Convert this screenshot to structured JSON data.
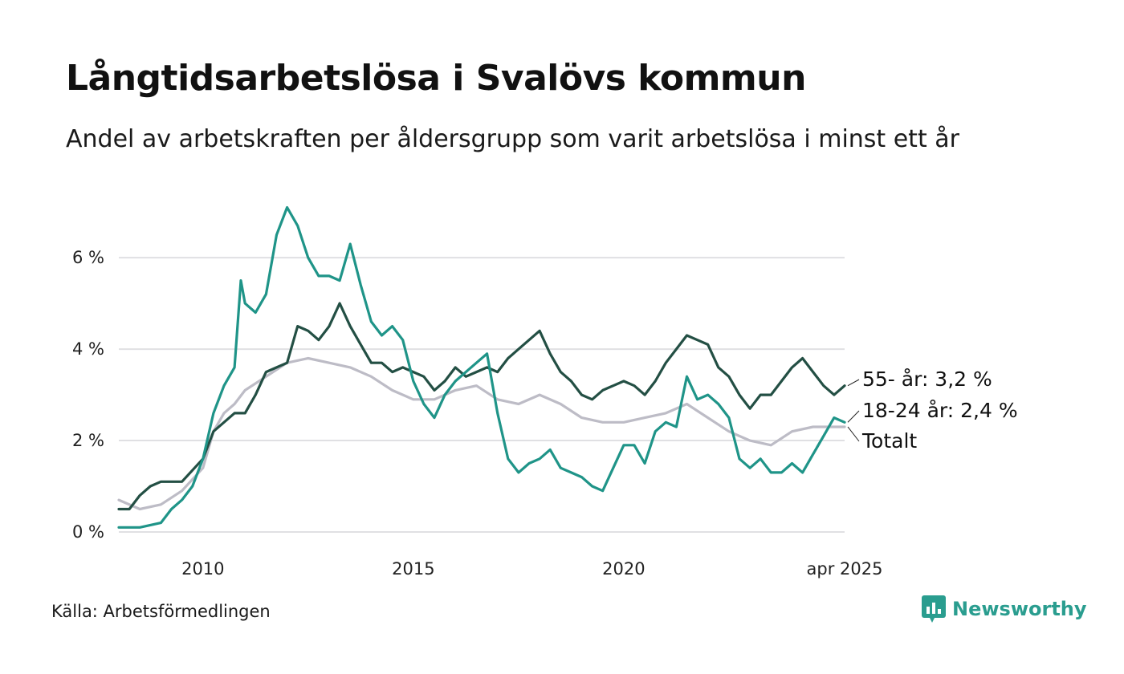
{
  "title": "Långtidsarbetslösa i Svalövs kommun",
  "subtitle": "Andel av arbetskraften per åldersgrupp som varit arbetslösa i minst ett år",
  "source": "Källa: Arbetsförmedlingen",
  "brand": {
    "name": "Newsworthy",
    "icon": "newsworthy-logo-icon",
    "color": "#2a9d8f"
  },
  "chart_data": {
    "type": "line",
    "title": "Långtidsarbetslösa i Svalövs kommun",
    "subtitle": "Andel av arbetskraften per åldersgrupp som varit arbetslösa i minst ett år",
    "xlabel": "",
    "ylabel": "",
    "xlim": [
      2008.0,
      2025.25
    ],
    "ylim": [
      0,
      7.6
    ],
    "y_ticks": [
      {
        "value": 0,
        "label": "0 %"
      },
      {
        "value": 2,
        "label": "2 %"
      },
      {
        "value": 4,
        "label": "4 %"
      },
      {
        "value": 6,
        "label": "6 %"
      }
    ],
    "x_ticks": [
      {
        "value": 2010,
        "label": "2010"
      },
      {
        "value": 2015,
        "label": "2015"
      },
      {
        "value": 2020,
        "label": "2020"
      },
      {
        "value": 2025.25,
        "label": "apr 2025"
      }
    ],
    "grid": "horizontal",
    "legend": "end-labels",
    "series": [
      {
        "name": "Totalt",
        "label": "Totalt",
        "color": "#bdbcc6",
        "points": [
          [
            2008.0,
            0.7
          ],
          [
            2008.5,
            0.5
          ],
          [
            2009.0,
            0.6
          ],
          [
            2009.5,
            0.9
          ],
          [
            2010.0,
            1.4
          ],
          [
            2010.25,
            2.2
          ],
          [
            2010.5,
            2.6
          ],
          [
            2010.75,
            2.8
          ],
          [
            2011.0,
            3.1
          ],
          [
            2011.5,
            3.4
          ],
          [
            2012.0,
            3.7
          ],
          [
            2012.5,
            3.8
          ],
          [
            2013.0,
            3.7
          ],
          [
            2013.5,
            3.6
          ],
          [
            2014.0,
            3.4
          ],
          [
            2014.5,
            3.1
          ],
          [
            2015.0,
            2.9
          ],
          [
            2015.5,
            2.9
          ],
          [
            2016.0,
            3.1
          ],
          [
            2016.5,
            3.2
          ],
          [
            2017.0,
            2.9
          ],
          [
            2017.5,
            2.8
          ],
          [
            2018.0,
            3.0
          ],
          [
            2018.5,
            2.8
          ],
          [
            2019.0,
            2.5
          ],
          [
            2019.5,
            2.4
          ],
          [
            2020.0,
            2.4
          ],
          [
            2020.5,
            2.5
          ],
          [
            2021.0,
            2.6
          ],
          [
            2021.5,
            2.8
          ],
          [
            2022.0,
            2.5
          ],
          [
            2022.5,
            2.2
          ],
          [
            2023.0,
            2.0
          ],
          [
            2023.5,
            1.9
          ],
          [
            2024.0,
            2.2
          ],
          [
            2024.5,
            2.3
          ],
          [
            2025.0,
            2.3
          ],
          [
            2025.25,
            2.3
          ]
        ]
      },
      {
        "name": "55- år",
        "label": "55- år: 3,2 %",
        "color": "#234f44",
        "points": [
          [
            2008.0,
            0.5
          ],
          [
            2008.25,
            0.5
          ],
          [
            2008.5,
            0.8
          ],
          [
            2008.75,
            1.0
          ],
          [
            2009.0,
            1.1
          ],
          [
            2009.5,
            1.1
          ],
          [
            2010.0,
            1.6
          ],
          [
            2010.25,
            2.2
          ],
          [
            2010.5,
            2.4
          ],
          [
            2010.75,
            2.6
          ],
          [
            2011.0,
            2.6
          ],
          [
            2011.25,
            3.0
          ],
          [
            2011.5,
            3.5
          ],
          [
            2011.75,
            3.6
          ],
          [
            2012.0,
            3.7
          ],
          [
            2012.25,
            4.5
          ],
          [
            2012.5,
            4.4
          ],
          [
            2012.75,
            4.2
          ],
          [
            2013.0,
            4.5
          ],
          [
            2013.25,
            5.0
          ],
          [
            2013.5,
            4.5
          ],
          [
            2013.75,
            4.1
          ],
          [
            2014.0,
            3.7
          ],
          [
            2014.25,
            3.7
          ],
          [
            2014.5,
            3.5
          ],
          [
            2014.75,
            3.6
          ],
          [
            2015.0,
            3.5
          ],
          [
            2015.25,
            3.4
          ],
          [
            2015.5,
            3.1
          ],
          [
            2015.75,
            3.3
          ],
          [
            2016.0,
            3.6
          ],
          [
            2016.25,
            3.4
          ],
          [
            2016.5,
            3.5
          ],
          [
            2016.75,
            3.6
          ],
          [
            2017.0,
            3.5
          ],
          [
            2017.25,
            3.8
          ],
          [
            2017.5,
            4.0
          ],
          [
            2017.75,
            4.2
          ],
          [
            2018.0,
            4.4
          ],
          [
            2018.25,
            3.9
          ],
          [
            2018.5,
            3.5
          ],
          [
            2018.75,
            3.3
          ],
          [
            2019.0,
            3.0
          ],
          [
            2019.25,
            2.9
          ],
          [
            2019.5,
            3.1
          ],
          [
            2019.75,
            3.2
          ],
          [
            2020.0,
            3.3
          ],
          [
            2020.25,
            3.2
          ],
          [
            2020.5,
            3.0
          ],
          [
            2020.75,
            3.3
          ],
          [
            2021.0,
            3.7
          ],
          [
            2021.25,
            4.0
          ],
          [
            2021.5,
            4.3
          ],
          [
            2021.75,
            4.2
          ],
          [
            2022.0,
            4.1
          ],
          [
            2022.25,
            3.6
          ],
          [
            2022.5,
            3.4
          ],
          [
            2022.75,
            3.0
          ],
          [
            2023.0,
            2.7
          ],
          [
            2023.25,
            3.0
          ],
          [
            2023.5,
            3.0
          ],
          [
            2023.75,
            3.3
          ],
          [
            2024.0,
            3.6
          ],
          [
            2024.25,
            3.8
          ],
          [
            2024.5,
            3.5
          ],
          [
            2024.75,
            3.2
          ],
          [
            2025.0,
            3.0
          ],
          [
            2025.25,
            3.2
          ]
        ]
      },
      {
        "name": "18-24 år",
        "label": "18-24 år: 2,4 %",
        "color": "#1f9488",
        "points": [
          [
            2008.0,
            0.1
          ],
          [
            2008.5,
            0.1
          ],
          [
            2009.0,
            0.2
          ],
          [
            2009.25,
            0.5
          ],
          [
            2009.5,
            0.7
          ],
          [
            2009.75,
            1.0
          ],
          [
            2010.0,
            1.6
          ],
          [
            2010.25,
            2.6
          ],
          [
            2010.5,
            3.2
          ],
          [
            2010.75,
            3.6
          ],
          [
            2010.9,
            5.5
          ],
          [
            2011.0,
            5.0
          ],
          [
            2011.25,
            4.8
          ],
          [
            2011.5,
            5.2
          ],
          [
            2011.75,
            6.5
          ],
          [
            2012.0,
            7.1
          ],
          [
            2012.25,
            6.7
          ],
          [
            2012.5,
            6.0
          ],
          [
            2012.75,
            5.6
          ],
          [
            2013.0,
            5.6
          ],
          [
            2013.25,
            5.5
          ],
          [
            2013.5,
            6.3
          ],
          [
            2013.75,
            5.4
          ],
          [
            2014.0,
            4.6
          ],
          [
            2014.25,
            4.3
          ],
          [
            2014.5,
            4.5
          ],
          [
            2014.75,
            4.2
          ],
          [
            2015.0,
            3.3
          ],
          [
            2015.25,
            2.8
          ],
          [
            2015.5,
            2.5
          ],
          [
            2015.75,
            3.0
          ],
          [
            2016.0,
            3.3
          ],
          [
            2016.25,
            3.5
          ],
          [
            2016.5,
            3.7
          ],
          [
            2016.75,
            3.9
          ],
          [
            2017.0,
            2.6
          ],
          [
            2017.25,
            1.6
          ],
          [
            2017.5,
            1.3
          ],
          [
            2017.75,
            1.5
          ],
          [
            2018.0,
            1.6
          ],
          [
            2018.25,
            1.8
          ],
          [
            2018.5,
            1.4
          ],
          [
            2018.75,
            1.3
          ],
          [
            2019.0,
            1.2
          ],
          [
            2019.25,
            1.0
          ],
          [
            2019.5,
            0.9
          ],
          [
            2019.75,
            1.4
          ],
          [
            2020.0,
            1.9
          ],
          [
            2020.25,
            1.9
          ],
          [
            2020.5,
            1.5
          ],
          [
            2020.75,
            2.2
          ],
          [
            2021.0,
            2.4
          ],
          [
            2021.25,
            2.3
          ],
          [
            2021.5,
            3.4
          ],
          [
            2021.75,
            2.9
          ],
          [
            2022.0,
            3.0
          ],
          [
            2022.25,
            2.8
          ],
          [
            2022.5,
            2.5
          ],
          [
            2022.75,
            1.6
          ],
          [
            2023.0,
            1.4
          ],
          [
            2023.25,
            1.6
          ],
          [
            2023.5,
            1.3
          ],
          [
            2023.75,
            1.3
          ],
          [
            2024.0,
            1.5
          ],
          [
            2024.25,
            1.3
          ],
          [
            2024.5,
            1.7
          ],
          [
            2024.75,
            2.1
          ],
          [
            2025.0,
            2.5
          ],
          [
            2025.25,
            2.4
          ]
        ]
      }
    ]
  }
}
